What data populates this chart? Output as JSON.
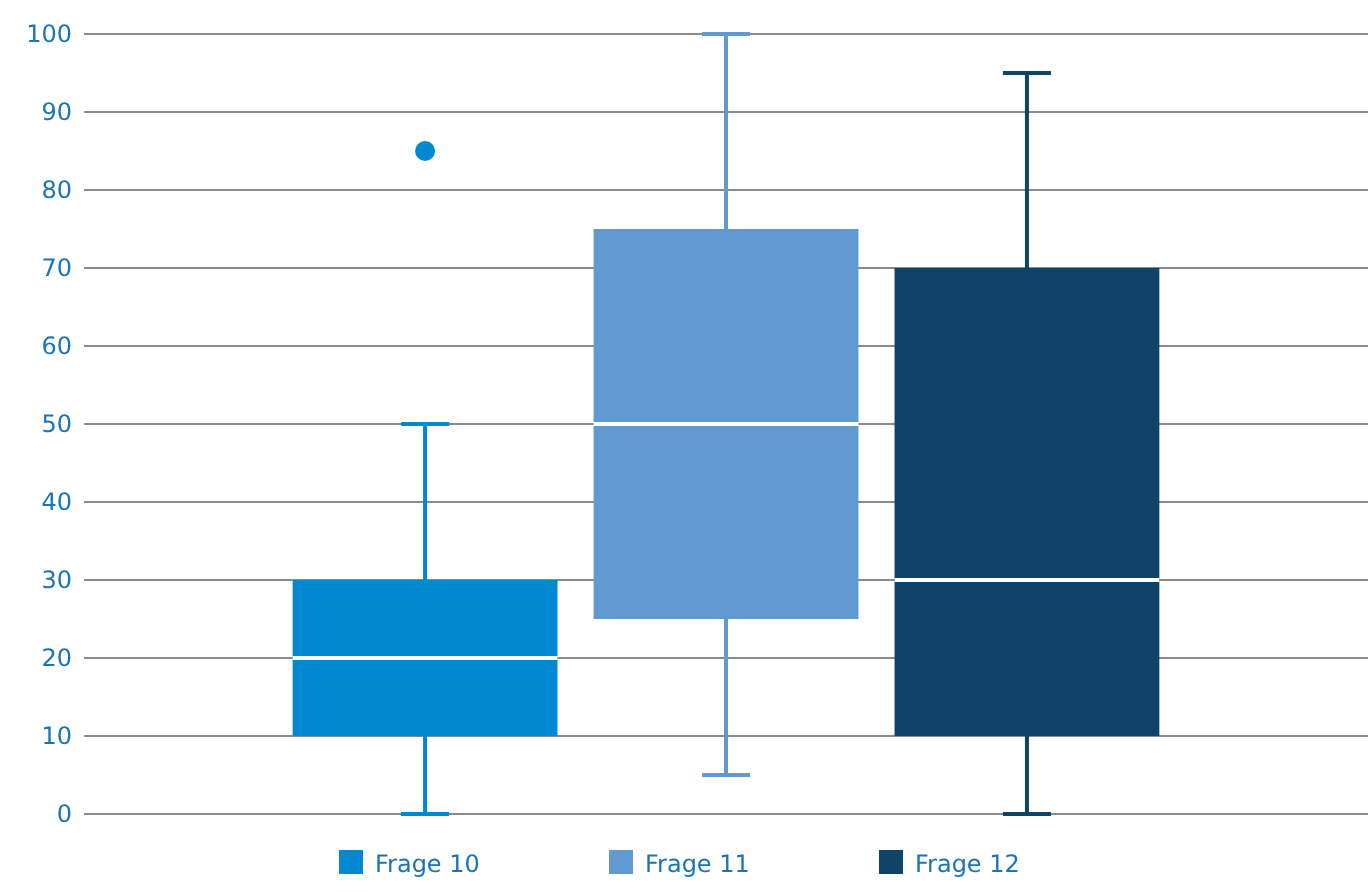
{
  "chart_data": {
    "type": "box",
    "categories": [
      null
    ],
    "ylim": [
      0,
      100
    ],
    "yticks": [
      0,
      10,
      20,
      30,
      40,
      50,
      60,
      70,
      80,
      90,
      100
    ],
    "grid": "y",
    "legend": "bottom",
    "tick_labels": "y",
    "series": [
      {
        "name": "Frage 10",
        "color": "#0088d0",
        "boxes": [
          {
            "low": 0,
            "q1": 10,
            "median": 20,
            "q3": 30,
            "high": 50,
            "outliers": [
              85
            ]
          }
        ]
      },
      {
        "name": "Frage 11",
        "color": "#6199d1",
        "boxes": [
          {
            "low": 5,
            "q1": 25,
            "median": 50,
            "q3": 75,
            "high": 100
          }
        ]
      },
      {
        "name": "Frage 12",
        "color": "#0f4469",
        "boxes": [
          {
            "low": 0,
            "q1": 10,
            "median": 30,
            "q3": 70,
            "high": 95
          }
        ]
      }
    ]
  }
}
